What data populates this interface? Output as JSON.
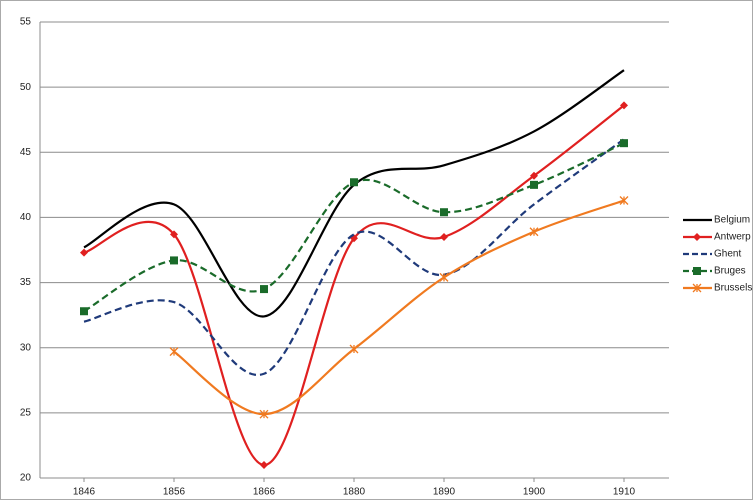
{
  "chart_data": {
    "type": "line",
    "categories": [
      "1846",
      "1856",
      "1866",
      "1880",
      "1890",
      "1900",
      "1910"
    ],
    "series": [
      {
        "name": "Belgium",
        "color": "#000000",
        "marker": "none",
        "dash": false,
        "values": [
          37.7,
          41.0,
          32.4,
          42.5,
          44.0,
          46.6,
          51.3
        ]
      },
      {
        "name": "Antwerp",
        "color": "#e02020",
        "marker": "diamond",
        "dash": false,
        "values": [
          37.3,
          38.7,
          21.0,
          38.4,
          38.5,
          43.2,
          48.6
        ]
      },
      {
        "name": "Ghent",
        "color": "#1f3a7a",
        "marker": "none",
        "dash": true,
        "values": [
          32.0,
          33.5,
          28.0,
          38.7,
          35.6,
          41.0,
          46.0
        ]
      },
      {
        "name": "Bruges",
        "color": "#1a6b2a",
        "marker": "square",
        "dash": true,
        "values": [
          32.8,
          36.7,
          34.5,
          42.7,
          40.4,
          42.5,
          45.7
        ]
      },
      {
        "name": "Brussels",
        "color": "#f07a20",
        "marker": "star",
        "dash": false,
        "values": [
          null,
          29.7,
          24.9,
          29.9,
          35.4,
          38.9,
          41.3
        ]
      }
    ],
    "ylim": [
      20,
      55
    ],
    "yticks": [
      20,
      25,
      30,
      35,
      40,
      45,
      50,
      55
    ],
    "grid": true,
    "smooth": true,
    "legend": "right"
  }
}
